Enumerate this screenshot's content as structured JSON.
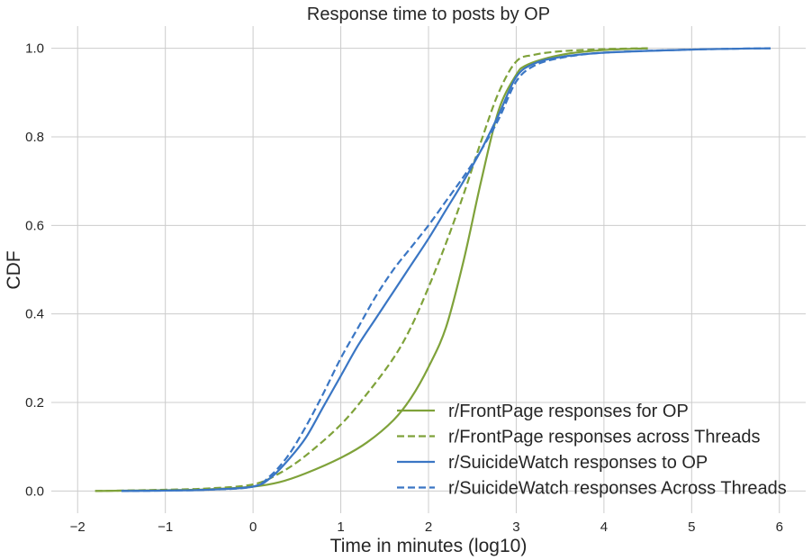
{
  "chart_data": {
    "type": "line",
    "title": "Response time to posts by OP",
    "xlabel": "Time in minutes (log10)",
    "ylabel": "CDF",
    "xlim": [
      -2.3,
      6.3
    ],
    "ylim": [
      -0.05,
      1.05
    ],
    "xticks": [
      -2,
      -1,
      0,
      1,
      2,
      3,
      4,
      5,
      6
    ],
    "xtick_labels": [
      "−2",
      "−1",
      "0",
      "1",
      "2",
      "3",
      "4",
      "5",
      "6"
    ],
    "yticks": [
      0.0,
      0.2,
      0.4,
      0.6,
      0.8,
      1.0
    ],
    "ytick_labels": [
      "0.0",
      "0.2",
      "0.4",
      "0.6",
      "0.8",
      "1.0"
    ],
    "grid": true,
    "legend_position": "lower-right",
    "series": [
      {
        "name": "r/FrontPage responses for OP",
        "color": "#7fa23a",
        "dash": "solid",
        "x": [
          -1.8,
          -1.0,
          -0.5,
          0.0,
          0.3,
          0.6,
          1.0,
          1.3,
          1.6,
          1.8,
          2.0,
          2.2,
          2.4,
          2.6,
          2.8,
          3.0,
          3.1,
          3.3,
          3.6,
          4.0,
          4.5
        ],
        "y": [
          0.0,
          0.002,
          0.004,
          0.01,
          0.02,
          0.04,
          0.075,
          0.11,
          0.16,
          0.21,
          0.28,
          0.37,
          0.52,
          0.7,
          0.86,
          0.94,
          0.96,
          0.975,
          0.988,
          0.996,
          1.0
        ]
      },
      {
        "name": "r/FrontPage responses across Threads",
        "color": "#7fa23a",
        "dash": "dashed",
        "x": [
          -1.8,
          -1.0,
          -0.5,
          0.0,
          0.3,
          0.6,
          1.0,
          1.3,
          1.6,
          1.8,
          2.0,
          2.2,
          2.4,
          2.6,
          2.8,
          3.0,
          3.2,
          3.5,
          4.0,
          4.5
        ],
        "y": [
          0.0,
          0.003,
          0.006,
          0.015,
          0.04,
          0.08,
          0.15,
          0.22,
          0.3,
          0.37,
          0.46,
          0.56,
          0.67,
          0.79,
          0.9,
          0.97,
          0.985,
          0.993,
          0.998,
          1.0
        ]
      },
      {
        "name": "r/SuicideWatch responses to OP",
        "color": "#3a76c4",
        "dash": "solid",
        "x": [
          -1.5,
          -1.0,
          -0.5,
          0.0,
          0.2,
          0.4,
          0.6,
          0.8,
          1.0,
          1.2,
          1.4,
          1.6,
          1.8,
          2.0,
          2.2,
          2.4,
          2.6,
          2.8,
          3.0,
          3.2,
          3.5,
          4.0,
          5.0,
          5.9
        ],
        "y": [
          0.0,
          0.001,
          0.003,
          0.01,
          0.03,
          0.07,
          0.12,
          0.19,
          0.26,
          0.33,
          0.39,
          0.45,
          0.51,
          0.57,
          0.635,
          0.7,
          0.77,
          0.85,
          0.935,
          0.965,
          0.98,
          0.99,
          0.997,
          1.0
        ]
      },
      {
        "name": "r/SuicideWatch responses Across Threads",
        "color": "#3a76c4",
        "dash": "dashed",
        "x": [
          -1.5,
          -1.0,
          -0.5,
          0.0,
          0.2,
          0.4,
          0.6,
          0.8,
          1.0,
          1.2,
          1.4,
          1.6,
          1.8,
          2.0,
          2.2,
          2.4,
          2.6,
          2.8,
          3.0,
          3.2,
          3.5,
          4.0,
          5.0,
          5.9
        ],
        "y": [
          0.0,
          0.001,
          0.003,
          0.01,
          0.035,
          0.08,
          0.145,
          0.22,
          0.3,
          0.37,
          0.44,
          0.5,
          0.55,
          0.6,
          0.655,
          0.71,
          0.77,
          0.84,
          0.925,
          0.96,
          0.978,
          0.99,
          0.997,
          1.0
        ]
      }
    ]
  }
}
